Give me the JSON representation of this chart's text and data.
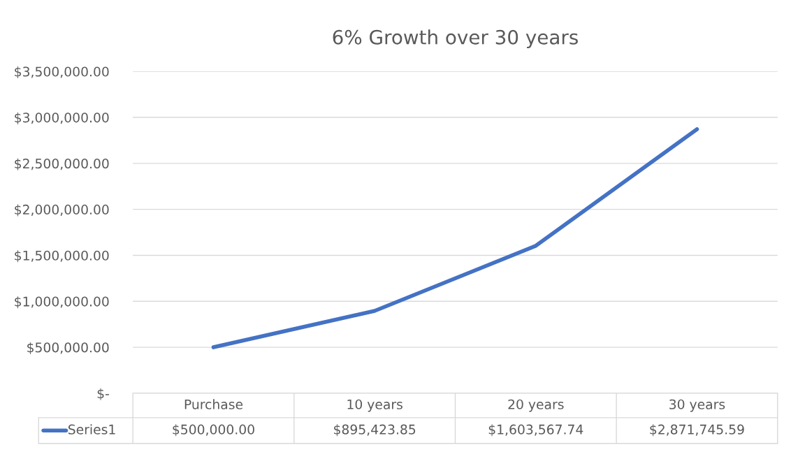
{
  "chart_data": {
    "type": "line",
    "title": "6% Growth over 30 years",
    "categories": [
      "Purchase",
      "10 years",
      "20 years",
      "30 years"
    ],
    "series": [
      {
        "name": "Series1",
        "color": "#4472c4",
        "values": [
          500000.0,
          895423.85,
          1603567.74,
          2871745.59
        ],
        "value_labels": [
          "$500,000.00",
          "$895,423.85",
          "$1,603,567.74",
          "$2,871,745.59"
        ]
      }
    ],
    "ylim": [
      0,
      3500000
    ],
    "yticks": [
      {
        "value": 0,
        "label": "$-"
      },
      {
        "value": 500000,
        "label": "$500,000.00"
      },
      {
        "value": 1000000,
        "label": "$1,000,000.00"
      },
      {
        "value": 1500000,
        "label": "$1,500,000.00"
      },
      {
        "value": 2000000,
        "label": "$2,000,000.00"
      },
      {
        "value": 2500000,
        "label": "$2,500,000.00"
      },
      {
        "value": 3000000,
        "label": "$3,000,000.00"
      },
      {
        "value": 3500000,
        "label": "$3,500,000.00"
      }
    ],
    "grid": "y",
    "legend": "bottom",
    "line_style": "solid",
    "marker": "none"
  }
}
